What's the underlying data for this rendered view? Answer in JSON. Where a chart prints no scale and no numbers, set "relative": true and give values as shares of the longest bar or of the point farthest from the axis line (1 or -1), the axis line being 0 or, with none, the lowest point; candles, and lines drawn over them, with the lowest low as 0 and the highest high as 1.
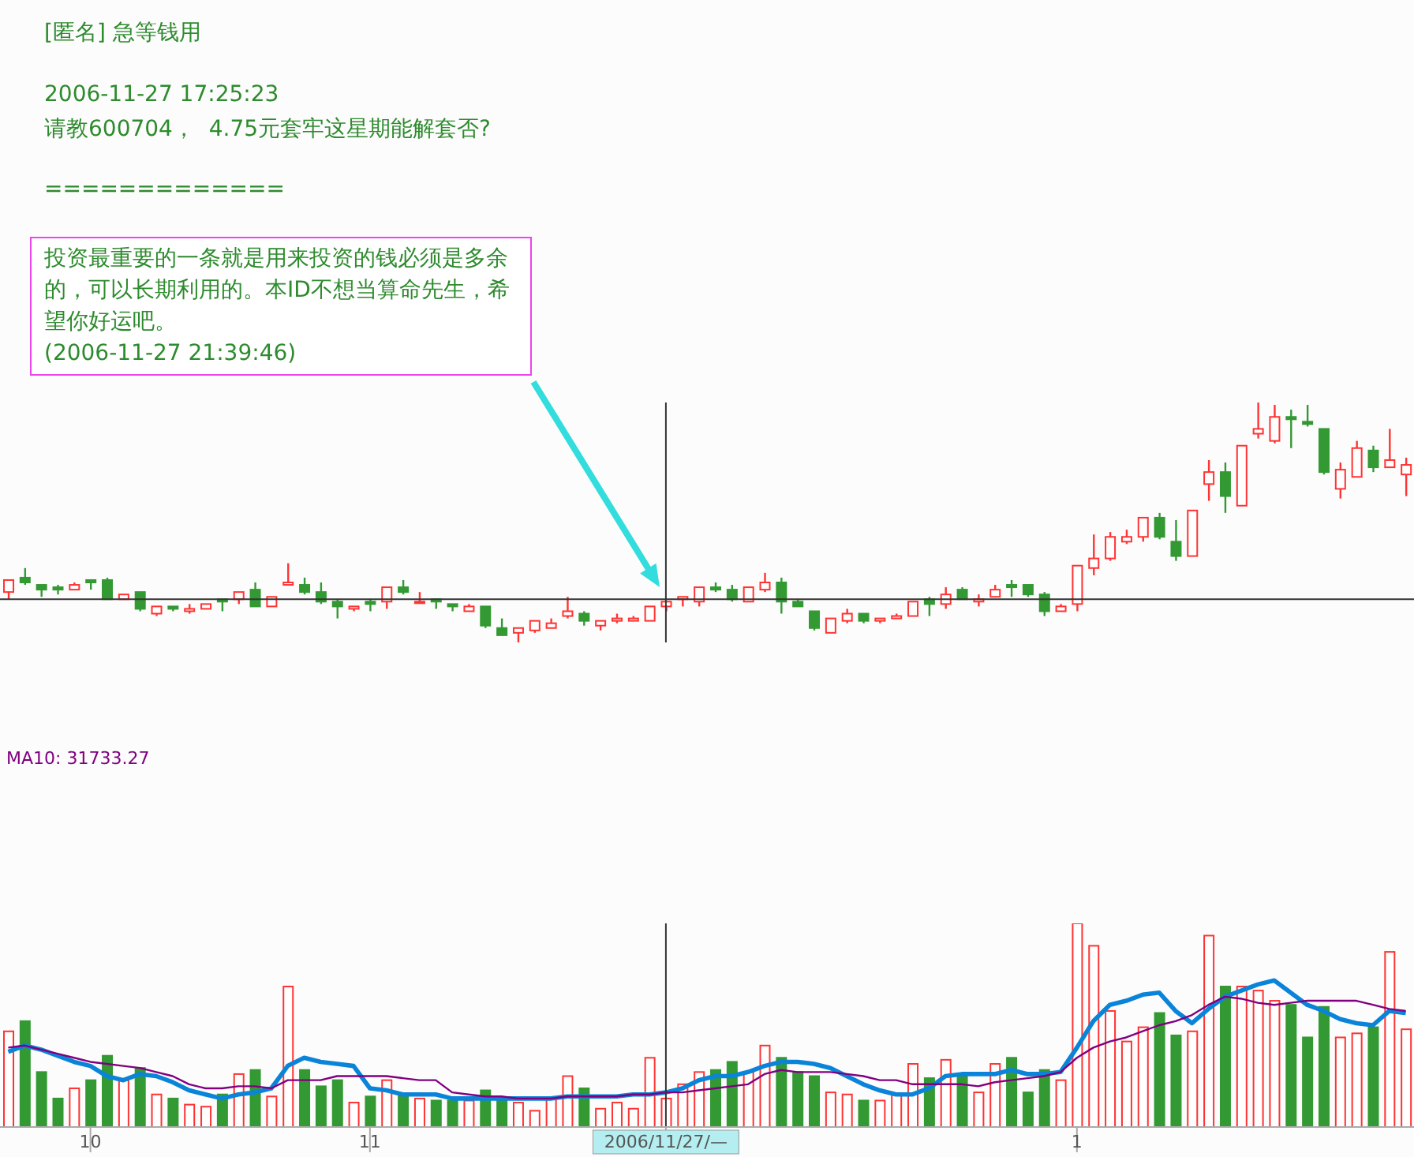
{
  "chart_data": [
    {
      "type": "candlestick",
      "title": "[匿名] 急等钱用",
      "relative": true,
      "tick_labels": false,
      "annotations": [
        "2006-11-27 17:25:23",
        "请教600704，  4.75元套牢这星期能解套否?",
        "=============",
        "投资最重要的一条就是用来投资的钱必须是多余的，可以长期利用的。本ID不想当算命先生，希望你好运吧。\n(2006-11-27 21:39:46)"
      ],
      "categories": [
        null,
        null,
        null,
        null,
        null,
        "10",
        null,
        null,
        null,
        null,
        null,
        null,
        null,
        null,
        null,
        null,
        null,
        null,
        null,
        null,
        null,
        null,
        "11",
        null,
        null,
        null,
        null,
        null,
        null,
        null,
        null,
        null,
        null,
        null,
        null,
        null,
        null,
        null,
        null,
        null,
        "2006/11/27/—",
        null,
        null,
        null,
        null,
        null,
        null,
        null,
        null,
        null,
        null,
        null,
        null,
        null,
        null,
        null,
        null,
        null,
        null,
        null,
        null,
        null,
        null,
        null,
        null,
        "1",
        null,
        null,
        null,
        null,
        null,
        null,
        null,
        null,
        null,
        null,
        null,
        null,
        null,
        null,
        null,
        null,
        null,
        null,
        null,
        null
      ],
      "ohlc": [
        [
          0.21,
          0.26,
          0.18,
          0.26
        ],
        [
          0.27,
          0.31,
          0.24,
          0.25
        ],
        [
          0.24,
          0.24,
          0.19,
          0.22
        ],
        [
          0.23,
          0.24,
          0.2,
          0.22
        ],
        [
          0.22,
          0.25,
          0.22,
          0.24
        ],
        [
          0.26,
          0.26,
          0.22,
          0.25
        ],
        [
          0.26,
          0.27,
          0.18,
          0.18
        ],
        [
          0.18,
          0.2,
          0.18,
          0.2
        ],
        [
          0.21,
          0.21,
          0.13,
          0.14
        ],
        [
          0.12,
          0.15,
          0.11,
          0.15
        ],
        [
          0.15,
          0.15,
          0.13,
          0.14
        ],
        [
          0.13,
          0.16,
          0.12,
          0.14
        ],
        [
          0.14,
          0.16,
          0.14,
          0.16
        ],
        [
          0.18,
          0.18,
          0.13,
          0.17
        ],
        [
          0.18,
          0.21,
          0.16,
          0.21
        ],
        [
          0.22,
          0.25,
          0.15,
          0.15
        ],
        [
          0.15,
          0.19,
          0.15,
          0.19
        ],
        [
          0.24,
          0.33,
          0.24,
          0.25
        ],
        [
          0.24,
          0.27,
          0.2,
          0.21
        ],
        [
          0.21,
          0.25,
          0.16,
          0.17
        ],
        [
          0.17,
          0.18,
          0.1,
          0.15
        ],
        [
          0.14,
          0.15,
          0.13,
          0.15
        ],
        [
          0.17,
          0.18,
          0.13,
          0.16
        ],
        [
          0.17,
          0.23,
          0.14,
          0.23
        ],
        [
          0.23,
          0.26,
          0.2,
          0.21
        ],
        [
          0.17,
          0.21,
          0.17,
          0.17
        ],
        [
          0.18,
          0.18,
          0.14,
          0.17
        ],
        [
          0.16,
          0.16,
          0.13,
          0.15
        ],
        [
          0.13,
          0.16,
          0.13,
          0.15
        ],
        [
          0.15,
          0.15,
          0.06,
          0.07
        ],
        [
          0.06,
          0.1,
          0.03,
          0.03
        ],
        [
          0.04,
          0.06,
          0,
          0.06
        ],
        [
          0.05,
          0.09,
          0.04,
          0.09
        ],
        [
          0.06,
          0.1,
          0.06,
          0.08
        ],
        [
          0.11,
          0.19,
          0.1,
          0.13
        ],
        [
          0.12,
          0.13,
          0.07,
          0.09
        ],
        [
          0.07,
          0.09,
          0.05,
          0.09
        ],
        [
          0.09,
          0.12,
          0.08,
          0.1
        ],
        [
          0.09,
          0.11,
          0.09,
          0.1
        ],
        [
          0.09,
          0.15,
          0.09,
          0.15
        ],
        [
          0.15,
          0.17,
          0.13,
          0.17
        ],
        [
          0.18,
          0.19,
          0.15,
          0.19
        ],
        [
          0.17,
          0.23,
          0.15,
          0.23
        ],
        [
          0.23,
          0.25,
          0.21,
          0.22
        ],
        [
          0.22,
          0.24,
          0.17,
          0.18
        ],
        [
          0.17,
          0.23,
          0.17,
          0.23
        ],
        [
          0.22,
          0.29,
          0.21,
          0.25
        ],
        [
          0.25,
          0.27,
          0.12,
          0.17
        ],
        [
          0.17,
          0.18,
          0.15,
          0.15
        ],
        [
          0.13,
          0.13,
          0.05,
          0.06
        ],
        [
          0.04,
          0.1,
          0.04,
          0.1
        ],
        [
          0.09,
          0.14,
          0.08,
          0.12
        ],
        [
          0.12,
          0.12,
          0.08,
          0.09
        ],
        [
          0.09,
          0.1,
          0.08,
          0.1
        ],
        [
          0.1,
          0.12,
          0.1,
          0.11
        ],
        [
          0.11,
          0.17,
          0.11,
          0.17
        ],
        [
          0.18,
          0.19,
          0.11,
          0.16
        ],
        [
          0.16,
          0.23,
          0.14,
          0.2
        ],
        [
          0.22,
          0.23,
          0.18,
          0.18
        ],
        [
          0.17,
          0.2,
          0.15,
          0.18
        ],
        [
          0.19,
          0.24,
          0.19,
          0.22
        ],
        [
          0.24,
          0.26,
          0.19,
          0.23
        ],
        [
          0.24,
          0.24,
          0.19,
          0.2
        ],
        [
          0.2,
          0.21,
          0.11,
          0.13
        ],
        [
          0.13,
          0.16,
          0.13,
          0.15
        ],
        [
          0.16,
          0.32,
          0.13,
          0.32
        ],
        [
          0.31,
          0.45,
          0.28,
          0.35
        ],
        [
          0.35,
          0.46,
          0.34,
          0.44
        ],
        [
          0.42,
          0.47,
          0.41,
          0.44
        ],
        [
          0.44,
          0.52,
          0.42,
          0.52
        ],
        [
          0.52,
          0.54,
          0.43,
          0.44
        ],
        [
          0.42,
          0.51,
          0.34,
          0.36
        ],
        [
          0.36,
          0.55,
          0.36,
          0.55
        ],
        [
          0.66,
          0.76,
          0.59,
          0.71
        ],
        [
          0.71,
          0.75,
          0.54,
          0.61
        ],
        [
          0.57,
          0.82,
          0.57,
          0.82
        ],
        [
          0.87,
          1,
          0.85,
          0.89
        ],
        [
          0.84,
          0.99,
          0.83,
          0.94
        ],
        [
          0.94,
          0.97,
          0.81,
          0.93
        ],
        [
          0.92,
          0.99,
          0.9,
          0.91
        ],
        [
          0.89,
          0.89,
          0.7,
          0.71
        ],
        [
          0.64,
          0.75,
          0.6,
          0.72
        ],
        [
          0.69,
          0.84,
          0.69,
          0.81
        ],
        [
          0.8,
          0.82,
          0.71,
          0.73
        ],
        [
          0.73,
          0.89,
          0.73,
          0.76
        ],
        [
          0.7,
          0.77,
          0.61,
          0.74
        ]
      ],
      "colors": [
        "#ff3333",
        "#339933",
        "#339933",
        "#339933",
        "#ff3333",
        "#339933",
        "#339933",
        "#ff3333",
        "#339933",
        "#ff3333",
        "#339933",
        "#ff3333",
        "#ff3333",
        "#339933",
        "#ff3333",
        "#339933",
        "#ff3333",
        "#ff3333",
        "#339933",
        "#339933",
        "#339933",
        "#ff3333",
        "#339933",
        "#ff3333",
        "#339933",
        "#ff3333",
        "#339933",
        "#339933",
        "#ff3333",
        "#339933",
        "#339933",
        "#ff3333",
        "#ff3333",
        "#ff3333",
        "#ff3333",
        "#339933",
        "#ff3333",
        "#ff3333",
        "#ff3333",
        "#ff3333",
        "#ff3333",
        "#ff3333",
        "#ff3333",
        "#339933",
        "#339933",
        "#ff3333",
        "#ff3333",
        "#339933",
        "#339933",
        "#339933",
        "#ff3333",
        "#ff3333",
        "#339933",
        "#ff3333",
        "#ff3333",
        "#ff3333",
        "#339933",
        "#ff3333",
        "#339933",
        "#ff3333",
        "#ff3333",
        "#339933",
        "#339933",
        "#339933",
        "#ff3333",
        "#ff3333",
        "#ff3333",
        "#ff3333",
        "#ff3333",
        "#ff3333",
        "#339933",
        "#339933",
        "#ff3333",
        "#ff3333",
        "#339933",
        "#ff3333",
        "#ff3333",
        "#ff3333",
        "#339933",
        "#339933",
        "#339933",
        "#ff3333",
        "#ff3333",
        "#339933",
        "#ff3333",
        "#ff3333"
      ],
      "ref_lines": [
        {
          "axis": "y",
          "value": 0.18,
          "label": null,
          "color": "#333333"
        },
        {
          "axis": "x",
          "value": "2006/11/27/—",
          "label": null,
          "color": "#333333"
        }
      ]
    },
    {
      "type": "bar",
      "relative": true,
      "tick_labels": "x",
      "marker": "none",
      "annotations": [
        "MA10: 31733.27"
      ],
      "categories": [
        null,
        null,
        null,
        null,
        null,
        "10",
        null,
        null,
        null,
        null,
        null,
        null,
        null,
        null,
        null,
        null,
        null,
        null,
        null,
        null,
        null,
        null,
        "11",
        null,
        null,
        null,
        null,
        null,
        null,
        null,
        null,
        null,
        null,
        null,
        null,
        null,
        null,
        null,
        null,
        null,
        "2006/11/27/—",
        null,
        null,
        null,
        null,
        null,
        null,
        null,
        null,
        null,
        null,
        null,
        null,
        null,
        null,
        null,
        null,
        null,
        null,
        null,
        null,
        null,
        null,
        null,
        null,
        "1",
        null,
        null,
        null,
        null,
        null,
        null,
        null,
        null,
        null,
        null,
        null,
        null,
        null,
        null,
        null,
        null,
        null,
        null,
        null,
        null
      ],
      "series": [
        {
          "type": "bar",
          "colors": [
            "#ff3333",
            "#339933",
            "#339933",
            "#339933",
            "#ff3333",
            "#339933",
            "#339933",
            "#ff3333",
            "#339933",
            "#ff3333",
            "#339933",
            "#ff3333",
            "#ff3333",
            "#339933",
            "#ff3333",
            "#339933",
            "#ff3333",
            "#ff3333",
            "#339933",
            "#339933",
            "#339933",
            "#ff3333",
            "#339933",
            "#ff3333",
            "#339933",
            "#ff3333",
            "#339933",
            "#339933",
            "#ff3333",
            "#339933",
            "#339933",
            "#ff3333",
            "#ff3333",
            "#ff3333",
            "#ff3333",
            "#339933",
            "#ff3333",
            "#ff3333",
            "#ff3333",
            "#ff3333",
            "#ff3333",
            "#ff3333",
            "#ff3333",
            "#339933",
            "#339933",
            "#ff3333",
            "#ff3333",
            "#339933",
            "#339933",
            "#339933",
            "#ff3333",
            "#ff3333",
            "#339933",
            "#ff3333",
            "#ff3333",
            "#ff3333",
            "#339933",
            "#ff3333",
            "#339933",
            "#ff3333",
            "#ff3333",
            "#339933",
            "#339933",
            "#339933",
            "#ff3333",
            "#ff3333",
            "#ff3333",
            "#ff3333",
            "#ff3333",
            "#ff3333",
            "#339933",
            "#339933",
            "#ff3333",
            "#ff3333",
            "#339933",
            "#ff3333",
            "#ff3333",
            "#ff3333",
            "#339933",
            "#339933",
            "#339933",
            "#ff3333",
            "#ff3333",
            "#339933",
            "#ff3333",
            "#ff3333"
          ],
          "values": [
            0.47,
            0.52,
            0.27,
            0.14,
            0.19,
            0.23,
            0.35,
            0.23,
            0.29,
            0.16,
            0.14,
            0.11,
            0.1,
            0.16,
            0.26,
            0.28,
            0.15,
            0.69,
            0.28,
            0.2,
            0.23,
            0.12,
            0.15,
            0.23,
            0.16,
            0.14,
            0.13,
            0.13,
            0.13,
            0.18,
            0.14,
            0.12,
            0.08,
            0.14,
            0.25,
            0.19,
            0.09,
            0.12,
            0.09,
            0.34,
            0.14,
            0.21,
            0.27,
            0.28,
            0.32,
            0.27,
            0.4,
            0.34,
            0.27,
            0.25,
            0.17,
            0.16,
            0.13,
            0.13,
            0.16,
            0.31,
            0.24,
            0.33,
            0.25,
            0.17,
            0.31,
            0.34,
            0.17,
            0.28,
            0.23,
            1,
            0.89,
            0.57,
            0.42,
            0.49,
            0.56,
            0.45,
            0.47,
            0.94,
            0.69,
            0.69,
            0.67,
            0.62,
            0.6,
            0.44,
            0.59,
            0.44,
            0.46,
            0.49,
            0.86,
            0.48
          ]
        },
        {
          "type": "line",
          "color": "#0a84d8",
          "values": [
            0.37,
            0.4,
            0.38,
            0.35,
            0.32,
            0.3,
            0.25,
            0.23,
            0.26,
            0.25,
            0.22,
            0.18,
            0.16,
            0.14,
            0.16,
            0.17,
            0.19,
            0.3,
            0.34,
            0.32,
            0.31,
            0.3,
            0.19,
            0.18,
            0.16,
            0.16,
            0.16,
            0.14,
            0.14,
            0.14,
            0.14,
            0.14,
            0.14,
            0.14,
            0.15,
            0.15,
            0.15,
            0.15,
            0.16,
            0.16,
            0.17,
            0.19,
            0.23,
            0.25,
            0.25,
            0.27,
            0.3,
            0.32,
            0.32,
            0.31,
            0.29,
            0.25,
            0.21,
            0.18,
            0.16,
            0.16,
            0.19,
            0.25,
            0.26,
            0.26,
            0.26,
            0.28,
            0.26,
            0.26,
            0.27,
            0.39,
            0.52,
            0.6,
            0.62,
            0.65,
            0.66,
            0.57,
            0.51,
            0.58,
            0.64,
            0.67,
            0.7,
            0.72,
            0.66,
            0.6,
            0.57,
            0.53,
            0.51,
            0.5,
            0.57,
            0.56
          ]
        },
        {
          "type": "line",
          "color": "#800080",
          "values": [
            0.39,
            0.4,
            0.38,
            0.36,
            0.34,
            0.32,
            0.31,
            0.3,
            0.29,
            0.27,
            0.25,
            0.21,
            0.19,
            0.19,
            0.2,
            0.2,
            0.19,
            0.23,
            0.23,
            0.23,
            0.25,
            0.25,
            0.25,
            0.25,
            0.24,
            0.23,
            0.23,
            0.17,
            0.16,
            0.15,
            0.15,
            0.14,
            0.14,
            0.14,
            0.15,
            0.15,
            0.15,
            0.15,
            0.16,
            0.16,
            0.17,
            0.17,
            0.18,
            0.19,
            0.2,
            0.21,
            0.26,
            0.28,
            0.27,
            0.27,
            0.27,
            0.26,
            0.25,
            0.23,
            0.23,
            0.21,
            0.21,
            0.21,
            0.21,
            0.2,
            0.22,
            0.23,
            0.24,
            0.25,
            0.27,
            0.34,
            0.39,
            0.42,
            0.44,
            0.47,
            0.5,
            0.52,
            0.55,
            0.6,
            0.64,
            0.63,
            0.61,
            0.6,
            0.61,
            0.62,
            0.62,
            0.62,
            0.62,
            0.6,
            0.58,
            0.57
          ]
        }
      ],
      "ref_lines": [
        {
          "axis": "x",
          "value": "2006/11/27/—",
          "label": null,
          "color": "#333333"
        }
      ]
    }
  ]
}
